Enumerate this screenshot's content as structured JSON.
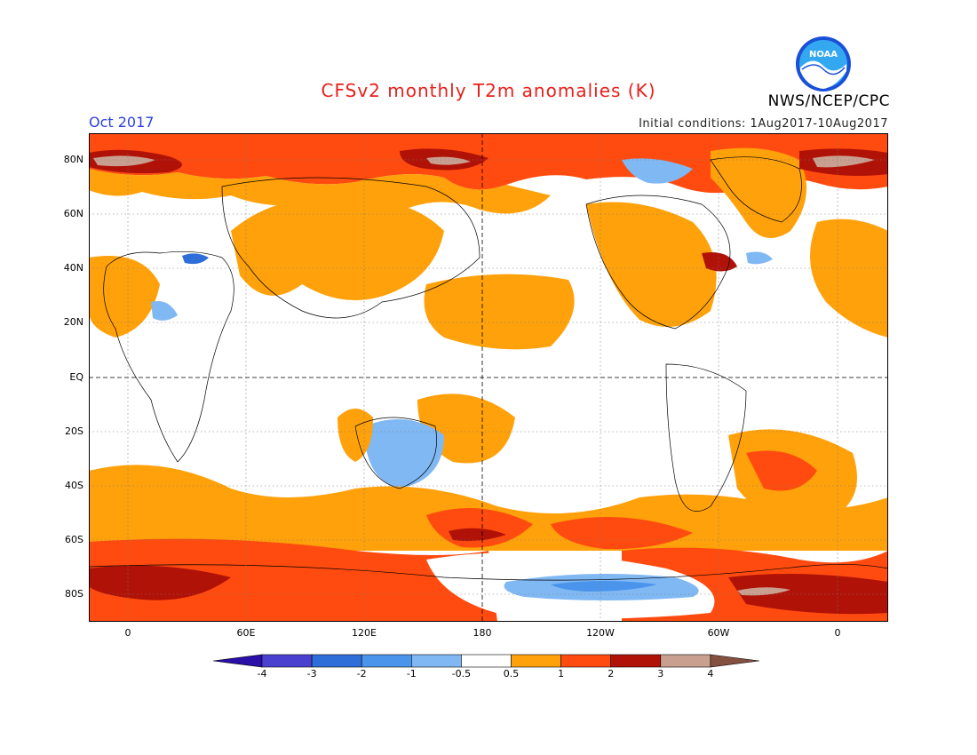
{
  "header": {
    "title": "CFSv2 monthly T2m anomalies (K)",
    "period": "Oct 2017",
    "initial_conditions": "Initial conditions: 1Aug2017-10Aug2017",
    "agency": "NWS/NCEP/CPC",
    "logo_text": "NOAA"
  },
  "map": {
    "projection": "cylindrical equidistant",
    "lat_labels": [
      "80N",
      "60N",
      "40N",
      "20N",
      "EQ",
      "20S",
      "40S",
      "60S",
      "80S"
    ],
    "lon_labels": [
      "0",
      "60E",
      "120E",
      "180",
      "120W",
      "60W",
      "0"
    ],
    "grid": "dotted",
    "reference_lines": "dashed equator and 180 meridian"
  },
  "colorbar": {
    "labels": [
      "-4",
      "-3",
      "-2",
      "-1",
      "-0.5",
      "0.5",
      "1",
      "2",
      "3",
      "4"
    ],
    "colors": [
      "#2a0fa8",
      "#4a40d0",
      "#2e6ed8",
      "#4a94ec",
      "#80b8f4",
      "#ffffff",
      "#ffa10a",
      "#ff4b0f",
      "#b01208",
      "#c9a090",
      "#845040"
    ],
    "units": "K"
  }
}
